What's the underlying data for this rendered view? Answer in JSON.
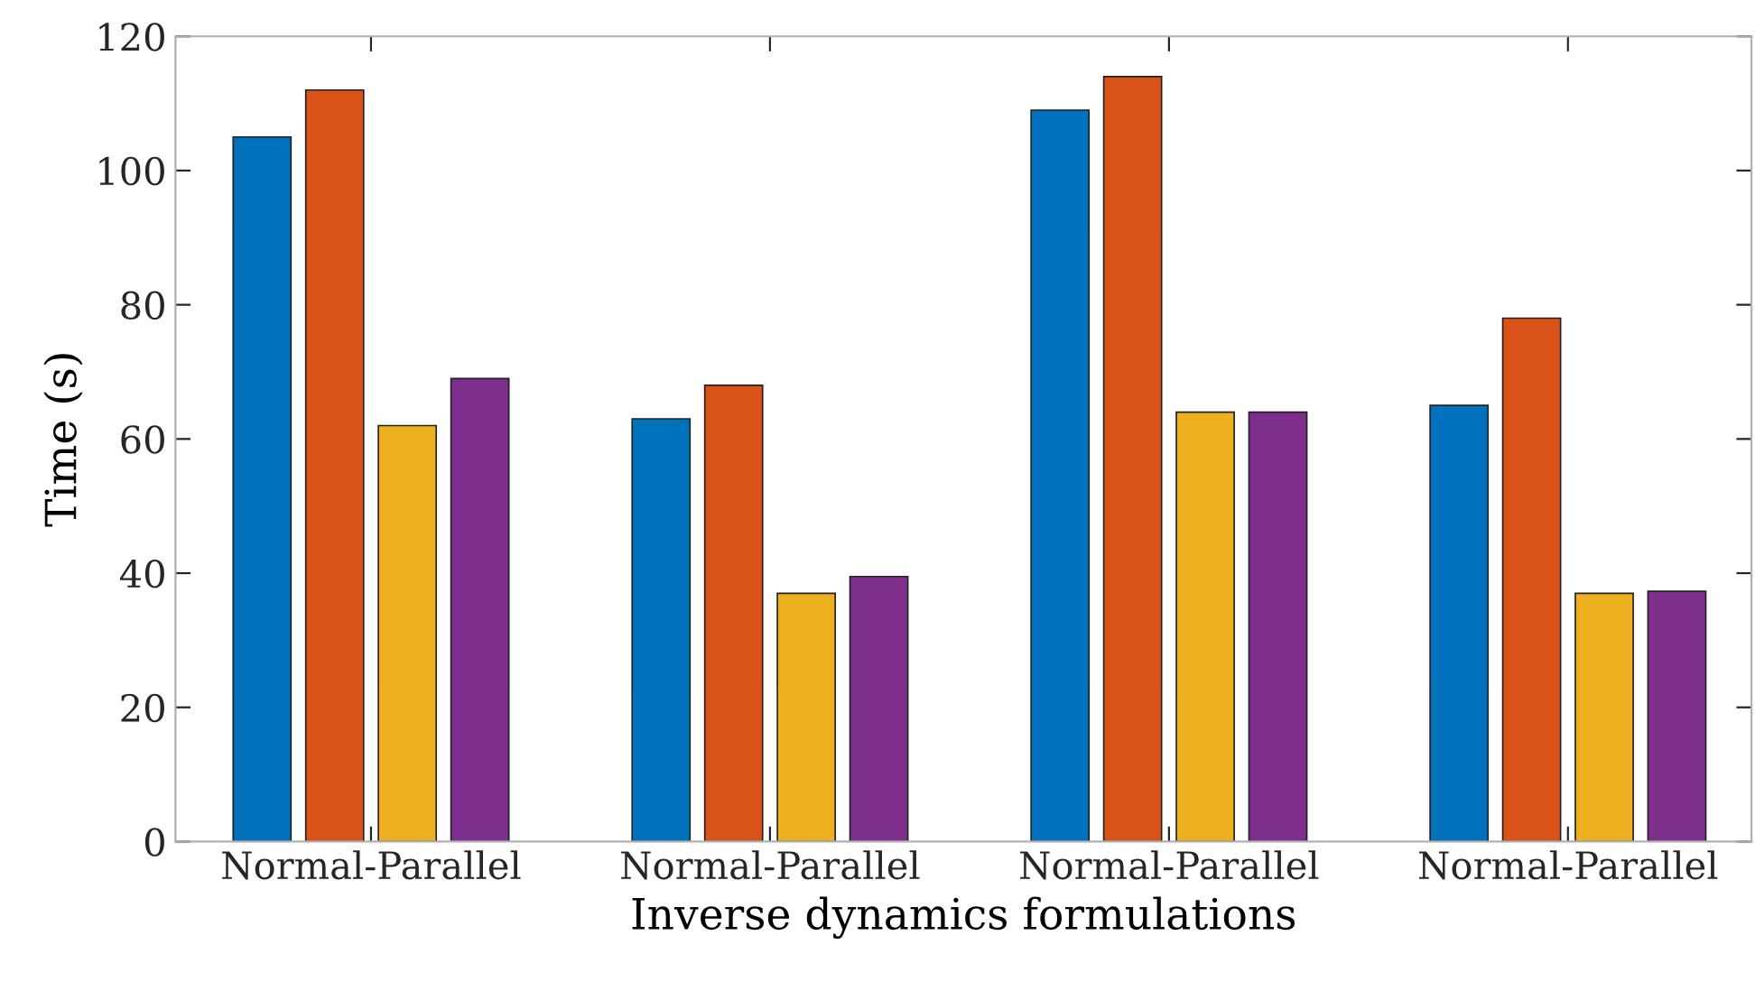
{
  "chart_data": {
    "type": "bar",
    "xlabel": "Inverse dynamics formulations",
    "ylabel": "Time (s)",
    "categories": [
      "Normal-Parallel",
      "Normal-Parallel",
      "Normal-Parallel",
      "Normal-Parallel"
    ],
    "series": [
      {
        "color": "#0072bd",
        "values": [
          105,
          63,
          109,
          65
        ]
      },
      {
        "color": "#d95319",
        "values": [
          112,
          68,
          114,
          78
        ]
      },
      {
        "color": "#edb120",
        "values": [
          62,
          37,
          64,
          37
        ]
      },
      {
        "color": "#7e2f8e",
        "values": [
          69,
          39.5,
          64,
          37.3
        ]
      }
    ],
    "ylim": [
      0,
      120
    ],
    "yticks": [
      0,
      20,
      40,
      60,
      80,
      100,
      120
    ],
    "grid": false
  }
}
